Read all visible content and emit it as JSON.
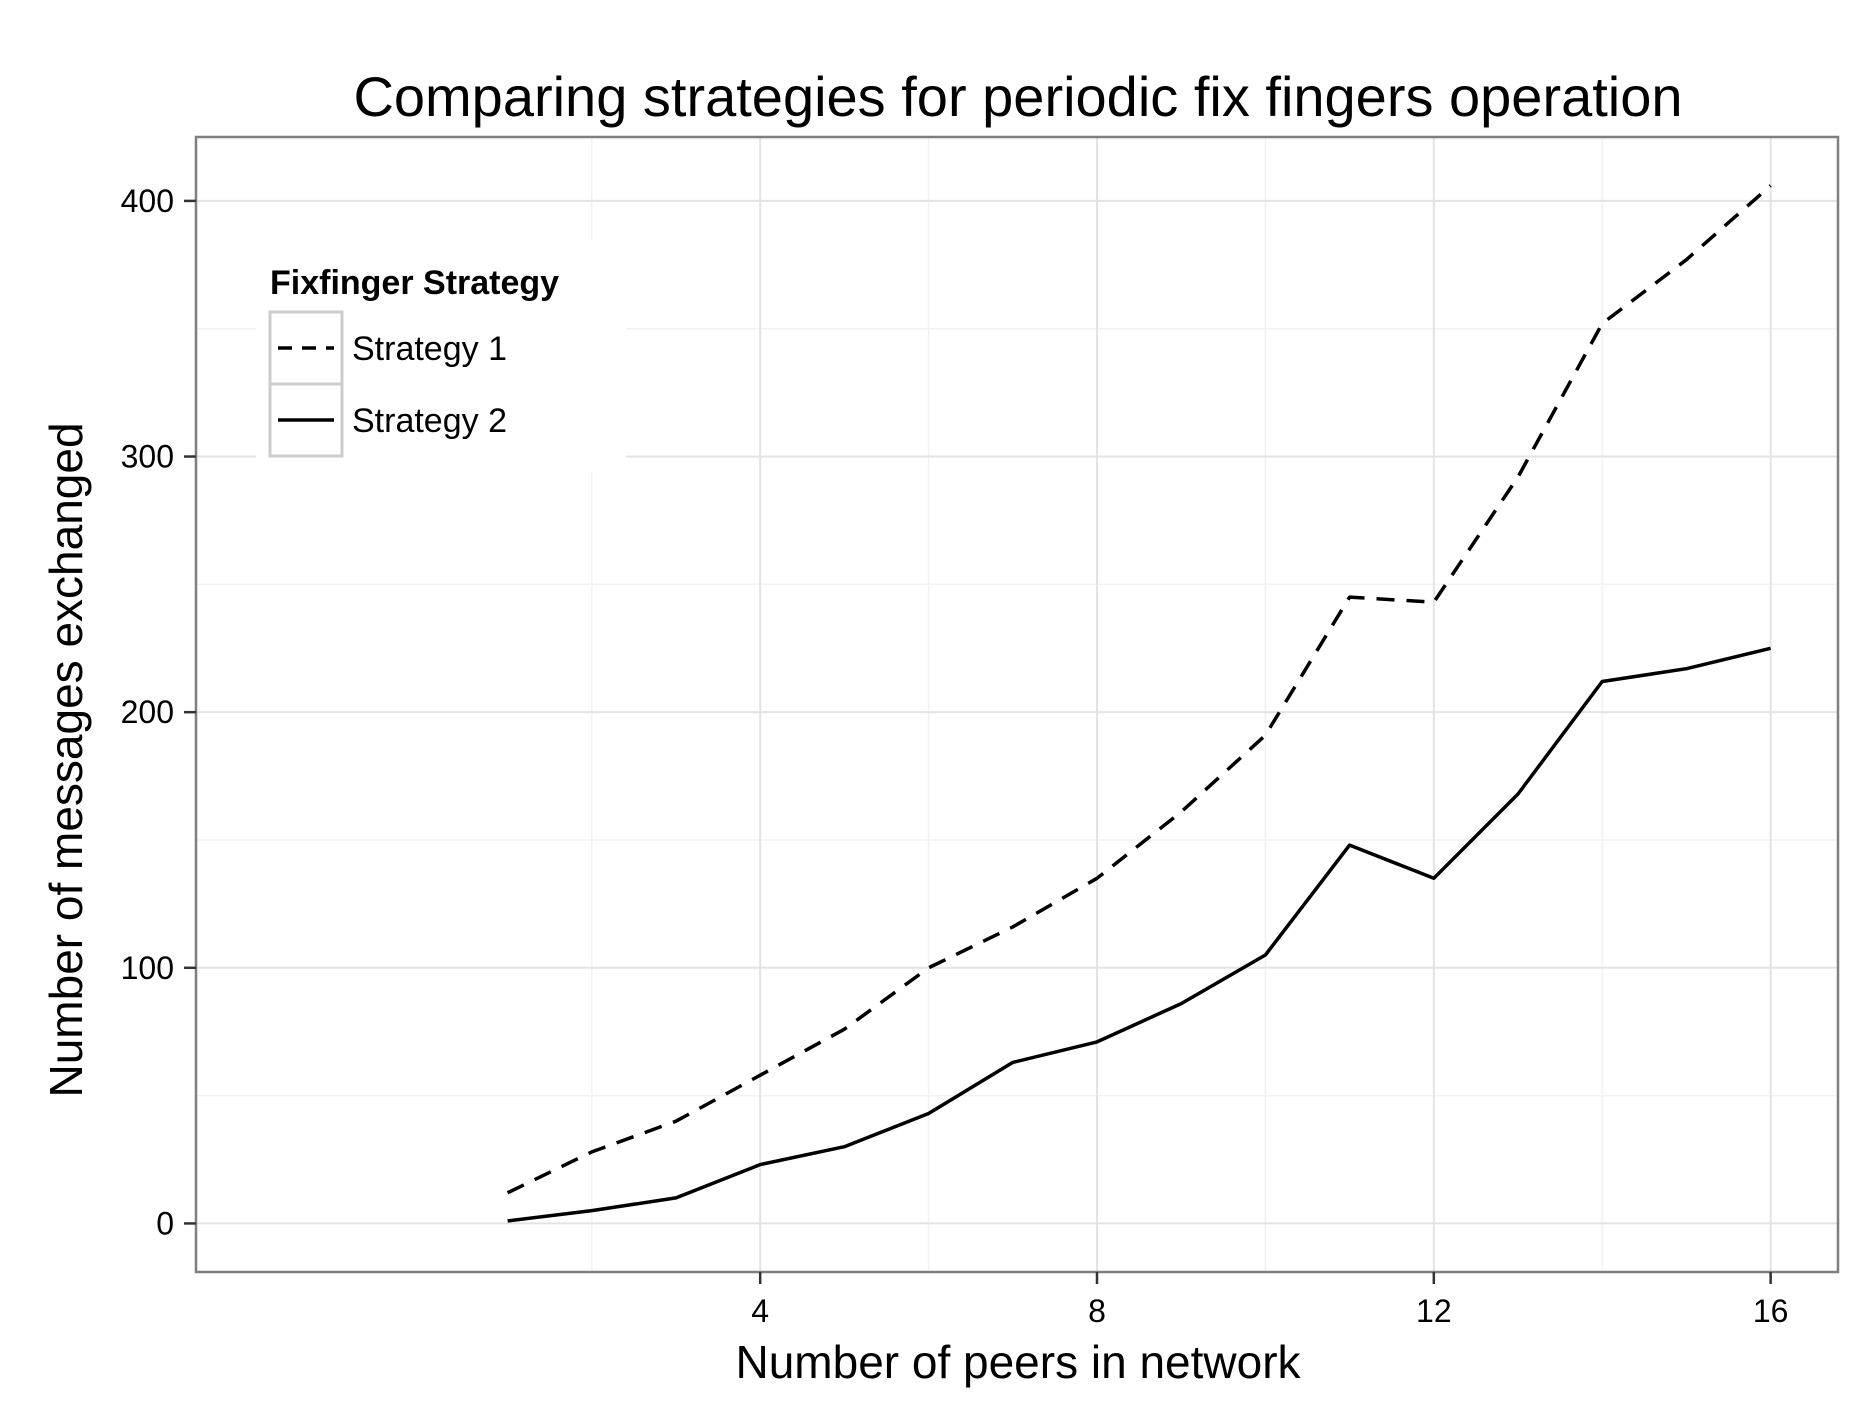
{
  "chart_data": {
    "type": "line",
    "title": "Comparing strategies for periodic fix fingers operation",
    "xlabel": "Number of peers in network",
    "ylabel": "Number of messages exchanged",
    "xlim": [
      -2.7,
      16.8
    ],
    "ylim": [
      -19,
      425
    ],
    "x_ticks": [
      4,
      8,
      12,
      16
    ],
    "y_ticks": [
      0,
      100,
      200,
      300,
      400
    ],
    "grid": true,
    "legend": {
      "title": "Fixfinger Strategy",
      "placement": "top-left",
      "entries": [
        "Strategy 1",
        "Strategy 2"
      ]
    },
    "series": [
      {
        "name": "Strategy 1",
        "line_style": "dashed",
        "color": "#000000",
        "x": [
          1,
          2,
          3,
          4,
          5,
          6,
          7,
          8,
          9,
          10,
          11,
          12,
          13,
          14,
          15,
          16
        ],
        "values": [
          12,
          28,
          40,
          58,
          76,
          100,
          116,
          135,
          161,
          191,
          245,
          243,
          292,
          352,
          377,
          406
        ]
      },
      {
        "name": "Strategy 2",
        "line_style": "solid",
        "color": "#000000",
        "x": [
          1,
          2,
          3,
          4,
          5,
          6,
          7,
          8,
          9,
          10,
          11,
          12,
          13,
          14,
          15,
          16
        ],
        "values": [
          1,
          5,
          10,
          23,
          30,
          43,
          63,
          71,
          86,
          105,
          148,
          135,
          168,
          212,
          217,
          225
        ]
      }
    ]
  }
}
